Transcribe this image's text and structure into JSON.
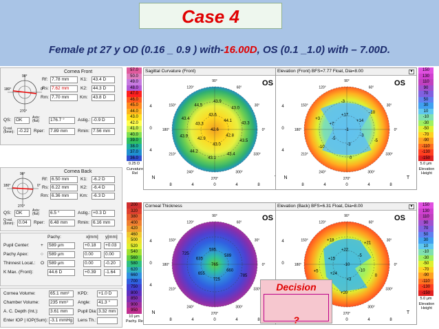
{
  "slide": {
    "title": "Case 4",
    "subtitle_parts": [
      "Female pt 27 y OD (0.16 _ 0.9 ) with-",
      "16.00D",
      ", OS (0.1 _1.0) with – 7.00D."
    ]
  },
  "left_panel": {
    "front_header": "Cornea Front",
    "back_header": "Cornea Back",
    "compass": [
      "90°",
      "0°",
      "180°",
      "270°"
    ],
    "front": {
      "rf_label": "Rf:",
      "rf_val": "7.78 mm",
      "k1_label": "K1:",
      "k1_val": "43.4 D",
      "rs_label": "Rs:",
      "rs_val": "7.62 mm",
      "k2_label": "K2:",
      "k2_val": "44.3 D",
      "rm_label": "Rm:",
      "rm_val": "7.70 mm",
      "km_label": "Km:",
      "km_val": "43.8 D",
      "qs_label": "QS:",
      "qs_val": "OK",
      "axis_label": "Axis: (flat)",
      "axis_val": "176.7 °",
      "astig_label": "Astig.:",
      "astig_val": "-0.9 D",
      "qval_label": "Q-val. (6mm):",
      "qval_val": "-0.22",
      "rper_label": "Rper:",
      "rper_val": "7.89 mm",
      "rmin_label": "Rmin:",
      "rmin_val": "7.56 mm"
    },
    "back": {
      "rf_label": "Rf:",
      "rf_val": "6.50 mm",
      "k1_label": "K1:",
      "k1_val": "-6.2 D",
      "rs_label": "Rs:",
      "rs_val": "6.22 mm",
      "k2_label": "K2:",
      "k2_val": "-6.4 D",
      "rm_label": "Rm:",
      "rm_val": "6.36 mm",
      "km_label": "Km:",
      "km_val": "-6.3 D",
      "qs_label": "QS:",
      "qs_val": "OK",
      "axis_label": "Axis: (flat)",
      "axis_val": "6.5 °",
      "astig_label": "Astig.:",
      "astig_val": "+0.3 D",
      "qval_label": "Q-val. (6mm):",
      "qval_val": "0.04",
      "rper_label": "Rper:",
      "rper_val": "6.48 mm",
      "rmin_label": "Rmin:",
      "rmin_val": "6.16 mm"
    },
    "pachy": {
      "col_pachy": "Pachy:",
      "col_x": "x[mm]",
      "col_y": "y[mm]",
      "rows": [
        {
          "label": "Pupil Center:",
          "mark": "+",
          "pachy": "589 μm",
          "x": "+0.18",
          "y": "+0.03"
        },
        {
          "label": "Pachy Apex:",
          "mark": "○",
          "pachy": "589 μm",
          "x": "0.00",
          "y": "0.00"
        },
        {
          "label": "Thinnest Locat.:",
          "mark": "O",
          "pachy": "589 μm",
          "x": "0.00",
          "y": "-0.20"
        },
        {
          "label": "K Max. (Front):",
          "mark": "",
          "pachy": "44.6 D",
          "x": "+0.39",
          "y": "-1.64"
        }
      ]
    },
    "bottom": [
      {
        "l1": "Cornea Volume:",
        "v1": "65.1 mm³",
        "l2": "KPD:",
        "v2": "+1.0 D"
      },
      {
        "l1": "Chamber Volume:",
        "v1": "235 mm³",
        "l2": "Angle:",
        "v2": "41.3 °"
      },
      {
        "l1": "A. C. Depth (Int.):",
        "v1": "3.61 mm",
        "l2": "Pupil Dia:",
        "v2": "3.32 mm"
      },
      {
        "l1": "Enter IOP | IOP(Sum):",
        "v1": "-3.1 mmHg",
        "l2": "Lens Th.:",
        "v2": ""
      }
    ]
  },
  "scales": {
    "curvature": {
      "values": [
        "57.0",
        "50.0",
        "49.0",
        "48.0",
        "47.0",
        "46.0",
        "45.0",
        "44.0",
        "43.0",
        "42.0",
        "41.0",
        "40.0",
        "39.0",
        "38.0",
        "37.0",
        "36.0"
      ],
      "unit": "0.25 D",
      "caption": "Curvature Rel"
    },
    "pachy": {
      "values": [
        "200",
        "320",
        "380",
        "400",
        "420",
        "460",
        "500",
        "520",
        "540",
        "560",
        "580",
        "620",
        "660",
        "700",
        "750",
        "800",
        "850",
        "900",
        "950"
      ],
      "unit": "10 μm",
      "caption": "Pachy. Rel"
    },
    "elev_front": {
      "values": [
        "150",
        "130",
        "110",
        "90",
        "70",
        "50",
        "30",
        "10",
        "-10",
        "-30",
        "-50",
        "-70",
        "-90",
        "-110",
        "-130",
        "-150"
      ],
      "unit": "5.0 μm",
      "caption": "Elevation Height"
    },
    "elev_back": {
      "values": [
        "150",
        "130",
        "110",
        "90",
        "70",
        "50",
        "30",
        "10",
        "-10",
        "-30",
        "-50",
        "-70",
        "-90",
        "-110",
        "-130",
        "-150"
      ],
      "unit": "5.0 μm",
      "caption": "Elevation Height"
    }
  },
  "maps": {
    "sagittal": {
      "title": "Sagittal Curvature (Front)",
      "eye": "OS",
      "dd": "▼",
      "values": [
        "42.6",
        "43.0",
        "42.9",
        "43.3",
        "43.6",
        "44.1",
        "42.8",
        "43.4",
        "43.1",
        "44.2",
        "43.9",
        "43.4",
        "44.5",
        "43.9",
        "43.0",
        "43.3",
        "43.5"
      ]
    },
    "elev_front": {
      "title": "Elevation (Front) BFS=7.77 Float, Dia=8.00",
      "eye": "OS",
      "dd": "▼",
      "values": [
        "-1",
        "-3",
        "-5",
        "+7",
        "+17",
        "+14",
        "-3",
        "0",
        "-10",
        "+3",
        "-3",
        "-10",
        "-5"
      ]
    },
    "thickness": {
      "title": "Corneal Thickness",
      "eye": "OS",
      "dd": "▼",
      "values": [
        "765",
        "725",
        "655",
        "635",
        "595",
        "589",
        "660",
        "725",
        "785"
      ]
    },
    "elev_back": {
      "title": "Elevation (Back) BFS=6.31 Float, Dia=8.00",
      "eye": "OS",
      "dd": "▼",
      "values": [
        "-10",
        "+3",
        "+24",
        "+15",
        "+22",
        "-5",
        "-10",
        "+20",
        "+5",
        "+18",
        "+21",
        "0"
      ]
    },
    "axis_ticks": [
      "8",
      "4",
      "0",
      "4",
      "8"
    ],
    "side_ticks": [
      "4",
      "0",
      "4"
    ],
    "degrees": [
      "90°",
      "120°",
      "60°",
      "150°",
      "30°",
      "180°",
      "0°",
      "210°",
      "330°",
      "240°",
      "300°",
      "270°"
    ],
    "nt": [
      "N",
      "T"
    ]
  },
  "decision": {
    "label": "Decision",
    "question": "?"
  }
}
